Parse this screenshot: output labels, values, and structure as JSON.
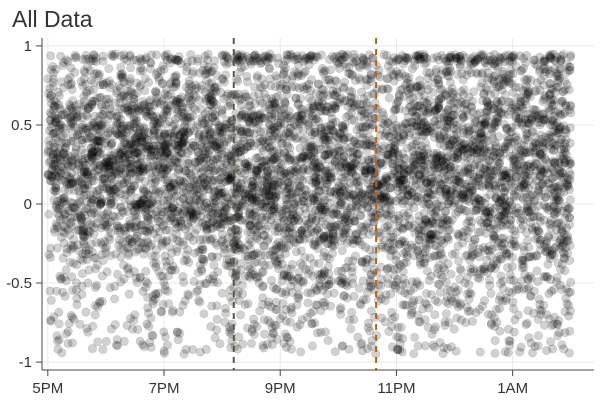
{
  "chart_data": {
    "type": "scatter",
    "title": "All Data",
    "xlabel": "",
    "ylabel": "",
    "x_ticks": [
      "5PM",
      "7PM",
      "9PM",
      "11PM",
      "1AM"
    ],
    "x_tick_hours": [
      17,
      19,
      21,
      23,
      25
    ],
    "xlim_hours": [
      16.9,
      26.4
    ],
    "y_ticks": [
      "1",
      "0.5",
      "0",
      "-0.5",
      "-1"
    ],
    "y_tick_values": [
      1,
      0.5,
      0,
      -0.5,
      -1
    ],
    "ylim": [
      -1.05,
      1.05
    ],
    "x_range_hours": [
      17,
      26
    ],
    "y_range": [
      -0.95,
      0.95
    ],
    "grid": true,
    "marker_color": "#000000",
    "marker_opacity": 0.18,
    "approx_point_count": 6000,
    "density": [
      {
        "hours": [
          17.0,
          20.0
        ],
        "center": 0.25,
        "spread": 0.35
      },
      {
        "hours": [
          20.0,
          23.0
        ],
        "center": 0.2,
        "spread": 0.42
      },
      {
        "hours": [
          23.0,
          26.0
        ],
        "center": 0.22,
        "spread": 0.44
      }
    ],
    "reference_lines": [
      {
        "x_hours": 20.2,
        "color": "#5a5a3a",
        "style": "dashed"
      },
      {
        "x_hours": 22.65,
        "color": "#c0600a",
        "style": "dashed"
      }
    ]
  }
}
